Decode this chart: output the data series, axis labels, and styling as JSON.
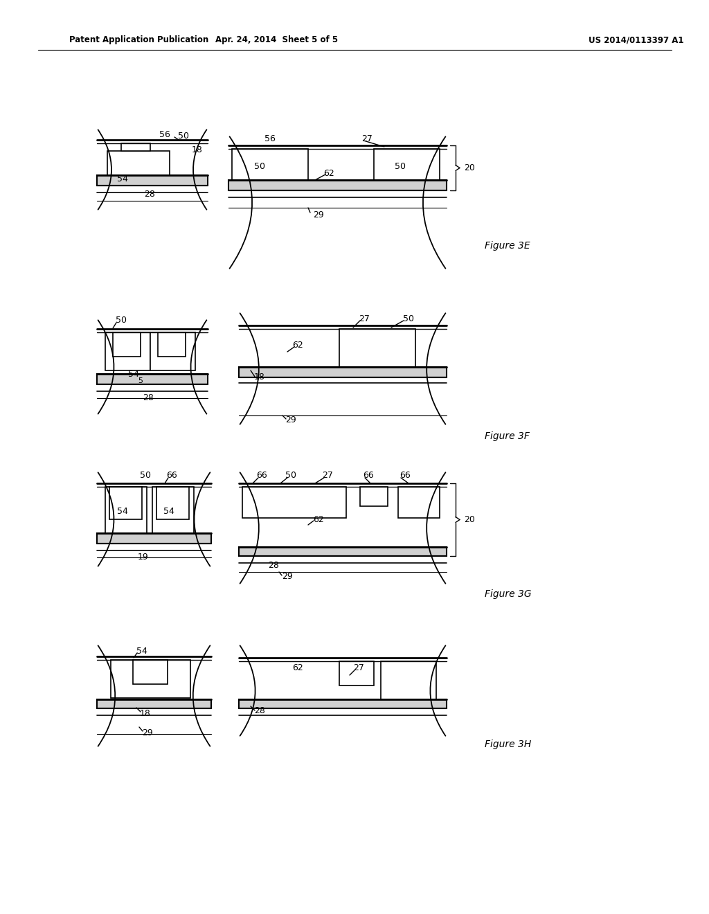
{
  "bg_color": "#ffffff",
  "header_left": "Patent Application Publication",
  "header_center": "Apr. 24, 2014  Sheet 5 of 5",
  "header_right": "US 2014/0113397 A1",
  "page_width": 10.24,
  "page_height": 13.2
}
